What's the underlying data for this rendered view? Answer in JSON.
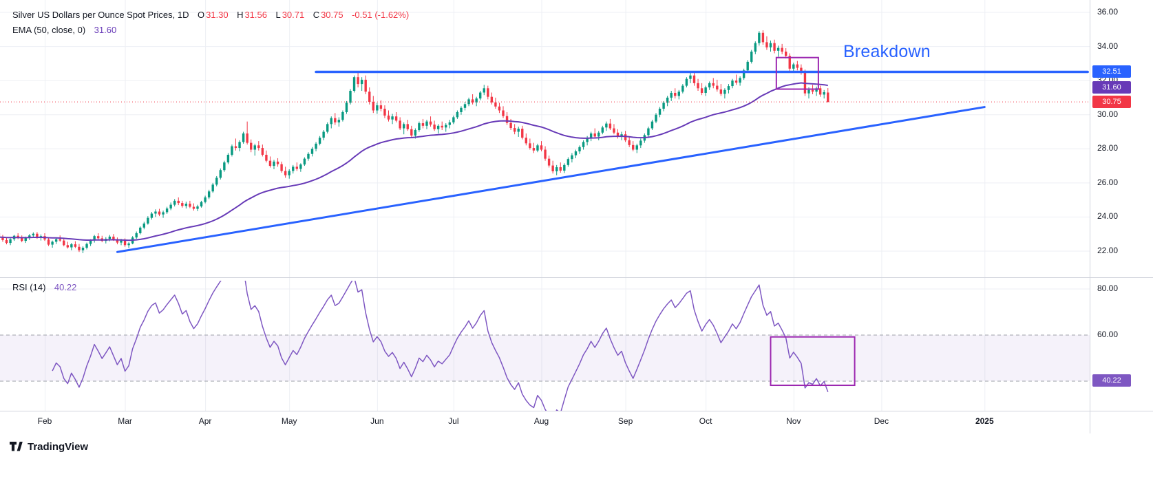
{
  "header": {
    "title": "Silver US Dollars per Ounce Spot Prices, 1D",
    "ohlc": {
      "o_label": "O",
      "o": "31.30",
      "h_label": "H",
      "h": "31.56",
      "l_label": "L",
      "l": "30.71",
      "c_label": "C",
      "c": "30.75",
      "change": "-0.51 (-1.62%)"
    },
    "ema_label": "EMA (50, close, 0)",
    "ema_value": "31.60"
  },
  "rsi_legend": {
    "label": "RSI (14)",
    "value": "40.22"
  },
  "footer": {
    "brand": "TradingView"
  },
  "chart_data": {
    "type": "candlestick",
    "title": "Silver US Dollars per Ounce Spot Prices",
    "interval": "1D",
    "last": {
      "open": 31.3,
      "high": 31.56,
      "low": 30.71,
      "close": 30.75,
      "change": -0.51,
      "change_pct": -1.62
    },
    "style": {
      "up": "#089981",
      "down": "#F23645",
      "grid": "#EDEFF4",
      "separator": "#D1D4DC",
      "band_fill": "rgba(126,87,194,0.08)",
      "band_line": "#9DA0A8",
      "axis_text": "#131722"
    },
    "ema": {
      "period": 50,
      "source": "close",
      "offset": 0,
      "value": 31.6,
      "color": "#673AB7"
    },
    "rsi": {
      "period": 14,
      "value": 40.22,
      "color": "#7E57C2",
      "upper_band": 60,
      "lower_band": 40,
      "overbought_ref": 80
    },
    "price_ticks": [
      36,
      34,
      32,
      30,
      28,
      26,
      24,
      22
    ],
    "rsi_ticks": [
      80,
      60
    ],
    "levels": {
      "resistance": 32.51,
      "last_close": 30.75
    },
    "price_axis_badges": [
      {
        "name": "resistance-price-badge",
        "label": "32.51",
        "price": 32.51,
        "color": "#2962FF"
      },
      {
        "name": "ema-price-badge",
        "label": "31.60",
        "price": 31.6,
        "color": "#673AB7"
      },
      {
        "name": "last-price-badge",
        "label": "30.75",
        "price": 30.75,
        "color": "#F23645"
      }
    ],
    "rsi_badge": {
      "name": "rsi-value-badge",
      "label": "40.22",
      "value": 40.22,
      "color": "#7E57C2"
    },
    "months": [
      {
        "label": "Feb",
        "day": 12
      },
      {
        "label": "Mar",
        "day": 33
      },
      {
        "label": "Apr",
        "day": 54
      },
      {
        "label": "May",
        "day": 76
      },
      {
        "label": "Jun",
        "day": 99
      },
      {
        "label": "Jul",
        "day": 119
      },
      {
        "label": "Aug",
        "day": 142
      },
      {
        "label": "Sep",
        "day": 164
      },
      {
        "label": "Oct",
        "day": 185
      },
      {
        "label": "Nov",
        "day": 208
      },
      {
        "label": "Dec",
        "day": 231
      },
      {
        "label": "2025",
        "day": 258,
        "bold": true
      }
    ],
    "trendlines": [
      {
        "name": "resistance-line",
        "d1": 83,
        "p1": 32.51,
        "d2": 285,
        "p2": 32.51,
        "color": "#2962FF",
        "width": 3.5
      },
      {
        "name": "ascending-trendline",
        "d1": 31,
        "p1": 21.95,
        "d2": 258,
        "p2": 30.45,
        "color": "#2962FF",
        "width": 3
      }
    ],
    "boxes": [
      {
        "name": "breakdown-box-price",
        "panel": "main",
        "d1": 203.5,
        "d2": 214.5,
        "v1": 33.35,
        "v2": 31.5,
        "color": "#9C27B0"
      },
      {
        "name": "breakdown-box-rsi",
        "panel": "rsi",
        "d1": 202,
        "d2": 224,
        "v1": 59.2,
        "v2": 38.2,
        "color": "#9C27B0"
      }
    ],
    "annotation": {
      "text": "Breakdown",
      "day": 221,
      "price": 34.25,
      "color": "#2962FF"
    },
    "candles": [
      [
        23.05,
        23.12,
        22.7,
        22.82
      ],
      [
        22.82,
        22.95,
        22.55,
        22.65
      ],
      [
        22.65,
        22.8,
        22.4,
        22.48
      ],
      [
        22.48,
        22.76,
        22.35,
        22.7
      ],
      [
        22.7,
        22.95,
        22.6,
        22.9
      ],
      [
        22.9,
        23.05,
        22.7,
        22.78
      ],
      [
        22.78,
        22.92,
        22.52,
        22.6
      ],
      [
        22.6,
        22.85,
        22.48,
        22.78
      ],
      [
        22.78,
        23.0,
        22.65,
        22.92
      ],
      [
        22.92,
        23.1,
        22.8,
        23.02
      ],
      [
        23.02,
        23.12,
        22.72,
        22.8
      ],
      [
        22.8,
        22.98,
        22.62,
        22.88
      ],
      [
        22.88,
        23.05,
        22.6,
        22.68
      ],
      [
        22.68,
        22.8,
        22.3,
        22.38
      ],
      [
        22.38,
        22.62,
        22.2,
        22.55
      ],
      [
        22.55,
        22.78,
        22.42,
        22.7
      ],
      [
        22.7,
        22.92,
        22.55,
        22.62
      ],
      [
        22.62,
        22.75,
        22.28,
        22.35
      ],
      [
        22.35,
        22.55,
        22.15,
        22.22
      ],
      [
        22.22,
        22.48,
        22.05,
        22.4
      ],
      [
        22.4,
        22.58,
        22.18,
        22.25
      ],
      [
        22.25,
        22.42,
        21.95,
        22.05
      ],
      [
        22.05,
        22.28,
        21.88,
        22.2
      ],
      [
        22.2,
        22.5,
        22.1,
        22.42
      ],
      [
        22.42,
        22.7,
        22.3,
        22.62
      ],
      [
        22.62,
        22.95,
        22.5,
        22.88
      ],
      [
        22.88,
        23.05,
        22.68,
        22.75
      ],
      [
        22.75,
        22.9,
        22.52,
        22.6
      ],
      [
        22.6,
        22.82,
        22.45,
        22.72
      ],
      [
        22.72,
        22.95,
        22.58,
        22.85
      ],
      [
        22.85,
        23.0,
        22.6,
        22.68
      ],
      [
        22.68,
        22.8,
        22.4,
        22.5
      ],
      [
        22.5,
        22.72,
        22.35,
        22.62
      ],
      [
        22.62,
        22.75,
        22.25,
        22.35
      ],
      [
        22.35,
        22.52,
        22.18,
        22.45
      ],
      [
        22.45,
        22.88,
        22.4,
        22.8
      ],
      [
        22.8,
        23.15,
        22.72,
        23.05
      ],
      [
        23.05,
        23.45,
        22.98,
        23.38
      ],
      [
        23.38,
        23.72,
        23.28,
        23.62
      ],
      [
        23.62,
        24.05,
        23.55,
        23.95
      ],
      [
        23.95,
        24.3,
        23.85,
        24.2
      ],
      [
        24.2,
        24.45,
        24.0,
        24.32
      ],
      [
        24.32,
        24.48,
        24.05,
        24.15
      ],
      [
        24.15,
        24.38,
        23.95,
        24.28
      ],
      [
        24.28,
        24.6,
        24.18,
        24.5
      ],
      [
        24.5,
        24.85,
        24.4,
        24.72
      ],
      [
        24.72,
        25.05,
        24.62,
        24.95
      ],
      [
        24.95,
        25.15,
        24.7,
        24.82
      ],
      [
        24.82,
        24.95,
        24.55,
        24.65
      ],
      [
        24.65,
        24.9,
        24.5,
        24.78
      ],
      [
        24.78,
        24.95,
        24.52,
        24.6
      ],
      [
        24.6,
        24.8,
        24.38,
        24.48
      ],
      [
        24.48,
        24.72,
        24.35,
        24.62
      ],
      [
        24.62,
        24.95,
        24.55,
        24.88
      ],
      [
        24.88,
        25.25,
        24.8,
        25.15
      ],
      [
        25.15,
        25.6,
        25.05,
        25.5
      ],
      [
        25.5,
        26.0,
        25.42,
        25.9
      ],
      [
        25.9,
        26.4,
        25.8,
        26.3
      ],
      [
        26.3,
        26.85,
        26.2,
        26.75
      ],
      [
        26.75,
        27.3,
        26.65,
        27.2
      ],
      [
        27.2,
        27.75,
        27.1,
        27.65
      ],
      [
        27.65,
        28.25,
        27.55,
        28.15
      ],
      [
        28.15,
        28.6,
        27.9,
        28.05
      ],
      [
        28.05,
        28.5,
        27.85,
        28.4
      ],
      [
        28.4,
        29.0,
        28.3,
        28.9
      ],
      [
        28.9,
        29.6,
        28.25,
        28.35
      ],
      [
        28.35,
        28.55,
        27.8,
        27.95
      ],
      [
        27.95,
        28.3,
        27.6,
        28.2
      ],
      [
        28.2,
        28.45,
        27.9,
        28.05
      ],
      [
        28.05,
        28.25,
        27.55,
        27.65
      ],
      [
        27.65,
        27.9,
        27.2,
        27.3
      ],
      [
        27.3,
        27.55,
        26.9,
        27.0
      ],
      [
        27.0,
        27.35,
        26.8,
        27.25
      ],
      [
        27.25,
        27.45,
        26.95,
        27.1
      ],
      [
        27.1,
        27.25,
        26.6,
        26.7
      ],
      [
        26.7,
        26.95,
        26.3,
        26.45
      ],
      [
        26.45,
        26.8,
        26.25,
        26.7
      ],
      [
        26.7,
        27.05,
        26.55,
        26.95
      ],
      [
        26.95,
        27.2,
        26.7,
        26.82
      ],
      [
        26.82,
        27.15,
        26.65,
        27.08
      ],
      [
        27.08,
        27.5,
        27.0,
        27.42
      ],
      [
        27.42,
        27.8,
        27.3,
        27.7
      ],
      [
        27.7,
        28.1,
        27.55,
        28.0
      ],
      [
        28.0,
        28.4,
        27.85,
        28.3
      ],
      [
        28.3,
        28.75,
        28.2,
        28.65
      ],
      [
        28.65,
        29.1,
        28.5,
        29.0
      ],
      [
        29.0,
        29.55,
        28.9,
        29.45
      ],
      [
        29.45,
        29.9,
        29.2,
        29.8
      ],
      [
        29.8,
        30.1,
        29.4,
        29.55
      ],
      [
        29.55,
        29.85,
        29.3,
        29.7
      ],
      [
        29.7,
        30.25,
        29.6,
        30.15
      ],
      [
        30.15,
        30.8,
        30.05,
        30.7
      ],
      [
        30.7,
        31.5,
        30.6,
        31.4
      ],
      [
        31.4,
        32.3,
        31.3,
        32.2
      ],
      [
        32.2,
        32.5,
        31.6,
        31.8
      ],
      [
        31.8,
        32.2,
        31.4,
        32.05
      ],
      [
        32.05,
        32.3,
        31.2,
        31.35
      ],
      [
        31.35,
        31.6,
        30.6,
        30.75
      ],
      [
        30.75,
        31.1,
        30.1,
        30.25
      ],
      [
        30.25,
        30.7,
        30.05,
        30.55
      ],
      [
        30.55,
        30.85,
        30.2,
        30.35
      ],
      [
        30.35,
        30.55,
        29.8,
        29.95
      ],
      [
        29.95,
        30.25,
        29.6,
        29.72
      ],
      [
        29.72,
        30.05,
        29.45,
        29.9
      ],
      [
        29.9,
        30.15,
        29.55,
        29.65
      ],
      [
        29.65,
        29.85,
        29.1,
        29.2
      ],
      [
        29.2,
        29.55,
        28.85,
        29.45
      ],
      [
        29.45,
        29.7,
        29.05,
        29.15
      ],
      [
        29.15,
        29.35,
        28.65,
        28.78
      ],
      [
        28.78,
        29.2,
        28.6,
        29.1
      ],
      [
        29.1,
        29.6,
        29.0,
        29.5
      ],
      [
        29.5,
        29.75,
        29.2,
        29.35
      ],
      [
        29.35,
        29.7,
        29.15,
        29.6
      ],
      [
        29.6,
        29.9,
        29.3,
        29.42
      ],
      [
        29.42,
        29.65,
        29.05,
        29.15
      ],
      [
        29.15,
        29.45,
        28.9,
        29.35
      ],
      [
        29.35,
        29.6,
        29.1,
        29.25
      ],
      [
        29.25,
        29.5,
        29.0,
        29.4
      ],
      [
        29.4,
        29.7,
        29.2,
        29.55
      ],
      [
        29.55,
        29.95,
        29.45,
        29.85
      ],
      [
        29.85,
        30.25,
        29.75,
        30.15
      ],
      [
        30.15,
        30.5,
        30.0,
        30.4
      ],
      [
        30.4,
        30.75,
        30.25,
        30.62
      ],
      [
        30.62,
        31.0,
        30.5,
        30.9
      ],
      [
        30.9,
        31.2,
        30.6,
        30.72
      ],
      [
        30.72,
        31.05,
        30.5,
        30.95
      ],
      [
        30.95,
        31.4,
        30.85,
        31.3
      ],
      [
        31.3,
        31.75,
        31.15,
        31.55
      ],
      [
        31.55,
        31.7,
        30.9,
        31.05
      ],
      [
        31.05,
        31.3,
        30.6,
        30.72
      ],
      [
        30.72,
        31.0,
        30.35,
        30.48
      ],
      [
        30.48,
        30.7,
        30.1,
        30.25
      ],
      [
        30.25,
        30.5,
        29.8,
        29.92
      ],
      [
        29.92,
        30.15,
        29.4,
        29.52
      ],
      [
        29.52,
        29.75,
        29.1,
        29.22
      ],
      [
        29.22,
        29.45,
        28.85,
        29.0
      ],
      [
        29.0,
        29.3,
        28.7,
        29.18
      ],
      [
        29.18,
        29.35,
        28.55,
        28.65
      ],
      [
        28.65,
        28.9,
        28.2,
        28.32
      ],
      [
        28.32,
        28.6,
        27.95,
        28.05
      ],
      [
        28.05,
        28.35,
        27.75,
        27.9
      ],
      [
        27.9,
        28.3,
        27.8,
        28.2
      ],
      [
        28.2,
        28.45,
        27.85,
        27.95
      ],
      [
        27.95,
        28.15,
        27.3,
        27.42
      ],
      [
        27.42,
        27.6,
        26.9,
        27.02
      ],
      [
        27.02,
        27.3,
        26.55,
        26.68
      ],
      [
        26.68,
        27.05,
        26.45,
        26.92
      ],
      [
        26.92,
        27.2,
        26.6,
        26.72
      ],
      [
        26.72,
        27.15,
        26.58,
        27.05
      ],
      [
        27.05,
        27.5,
        26.95,
        27.4
      ],
      [
        27.4,
        27.75,
        27.2,
        27.62
      ],
      [
        27.62,
        27.95,
        27.45,
        27.85
      ],
      [
        27.85,
        28.2,
        27.7,
        28.1
      ],
      [
        28.1,
        28.5,
        27.95,
        28.4
      ],
      [
        28.4,
        28.75,
        28.2,
        28.62
      ],
      [
        28.62,
        29.0,
        28.45,
        28.9
      ],
      [
        28.9,
        29.2,
        28.6,
        28.72
      ],
      [
        28.72,
        29.05,
        28.5,
        28.95
      ],
      [
        28.95,
        29.35,
        28.85,
        29.25
      ],
      [
        29.25,
        29.6,
        29.05,
        29.48
      ],
      [
        29.48,
        29.75,
        29.1,
        29.2
      ],
      [
        29.2,
        29.45,
        28.85,
        28.95
      ],
      [
        28.95,
        29.15,
        28.6,
        28.72
      ],
      [
        28.72,
        29.0,
        28.5,
        28.85
      ],
      [
        28.85,
        29.05,
        28.4,
        28.5
      ],
      [
        28.5,
        28.7,
        28.1,
        28.22
      ],
      [
        28.22,
        28.45,
        27.85,
        27.95
      ],
      [
        27.95,
        28.3,
        27.75,
        28.2
      ],
      [
        28.2,
        28.6,
        28.05,
        28.48
      ],
      [
        28.48,
        28.9,
        28.35,
        28.8
      ],
      [
        28.8,
        29.3,
        28.7,
        29.2
      ],
      [
        29.2,
        29.7,
        29.1,
        29.6
      ],
      [
        29.6,
        30.1,
        29.5,
        30.0
      ],
      [
        30.0,
        30.45,
        29.85,
        30.35
      ],
      [
        30.35,
        30.8,
        30.2,
        30.7
      ],
      [
        30.7,
        31.1,
        30.5,
        31.0
      ],
      [
        31.0,
        31.4,
        30.8,
        31.28
      ],
      [
        31.28,
        31.55,
        30.95,
        31.1
      ],
      [
        31.1,
        31.45,
        30.9,
        31.35
      ],
      [
        31.35,
        31.8,
        31.25,
        31.7
      ],
      [
        31.7,
        32.2,
        31.6,
        32.1
      ],
      [
        32.1,
        32.45,
        31.85,
        32.3
      ],
      [
        32.3,
        32.5,
        31.7,
        31.85
      ],
      [
        31.85,
        32.1,
        31.4,
        31.55
      ],
      [
        31.55,
        31.85,
        31.15,
        31.28
      ],
      [
        31.28,
        31.7,
        31.1,
        31.6
      ],
      [
        31.6,
        31.95,
        31.45,
        31.85
      ],
      [
        31.85,
        32.15,
        31.55,
        31.7
      ],
      [
        31.7,
        32.05,
        31.35,
        31.48
      ],
      [
        31.48,
        31.8,
        31.1,
        31.22
      ],
      [
        31.22,
        31.55,
        30.95,
        31.45
      ],
      [
        31.45,
        31.8,
        31.25,
        31.68
      ],
      [
        31.68,
        32.1,
        31.55,
        32.0
      ],
      [
        32.0,
        32.35,
        31.75,
        31.88
      ],
      [
        31.88,
        32.25,
        31.7,
        32.15
      ],
      [
        32.15,
        32.7,
        32.05,
        32.6
      ],
      [
        32.6,
        33.2,
        32.5,
        33.1
      ],
      [
        33.1,
        33.8,
        33.0,
        33.7
      ],
      [
        33.7,
        34.3,
        33.55,
        34.2
      ],
      [
        34.2,
        34.9,
        34.05,
        34.8
      ],
      [
        34.8,
        34.95,
        34.1,
        34.25
      ],
      [
        34.25,
        34.6,
        33.8,
        33.95
      ],
      [
        33.95,
        34.35,
        33.7,
        34.2
      ],
      [
        34.2,
        34.4,
        33.6,
        33.75
      ],
      [
        33.75,
        34.05,
        33.4,
        33.92
      ],
      [
        33.92,
        34.15,
        33.55,
        33.7
      ],
      [
        33.7,
        33.9,
        33.3,
        33.45
      ],
      [
        33.45,
        33.6,
        32.55,
        32.7
      ],
      [
        32.7,
        33.05,
        32.45,
        32.95
      ],
      [
        32.95,
        33.15,
        32.6,
        32.75
      ],
      [
        32.75,
        32.95,
        32.35,
        32.5
      ],
      [
        32.5,
        32.65,
        31.1,
        31.25
      ],
      [
        31.25,
        31.6,
        30.95,
        31.45
      ],
      [
        31.45,
        31.75,
        31.2,
        31.35
      ],
      [
        31.35,
        31.65,
        31.1,
        31.55
      ],
      [
        31.55,
        31.7,
        31.05,
        31.18
      ],
      [
        31.18,
        31.45,
        30.95,
        31.32
      ],
      [
        31.3,
        31.56,
        30.71,
        30.75
      ]
    ]
  }
}
